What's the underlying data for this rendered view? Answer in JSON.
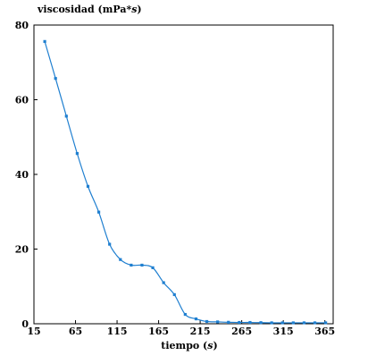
{
  "chart_data": {
    "type": "line",
    "title": "",
    "ylabel": "viscosidad (mPa*s)",
    "xlabel": "tiempo (s)",
    "xlim": [
      15,
      375
    ],
    "ylim": [
      0,
      80
    ],
    "grid": false,
    "x_ticks": [
      15,
      65,
      115,
      165,
      215,
      265,
      315,
      365
    ],
    "x_tick_labels": [
      "15",
      "65",
      "115",
      "165",
      "215",
      "265",
      "315",
      "365"
    ],
    "y_ticks": [
      0,
      20,
      40,
      60,
      80
    ],
    "y_tick_labels": [
      "0",
      "20",
      "40",
      "60",
      "80"
    ],
    "series": [
      {
        "color": "#1f7fd0",
        "x": [
          28,
          41,
          54,
          67,
          80,
          93,
          106,
          119,
          132,
          145,
          158,
          171,
          184,
          197,
          210,
          223,
          236,
          249,
          262,
          275,
          288,
          301,
          314,
          327,
          340,
          353,
          366
        ],
        "y": [
          75.6,
          65.7,
          55.6,
          45.6,
          36.8,
          29.9,
          21.3,
          17.2,
          15.7,
          15.7,
          15.0,
          11.0,
          7.8,
          2.5,
          1.3,
          0.6,
          0.5,
          0.4,
          0.35,
          0.35,
          0.3,
          0.25,
          0.25,
          0.25,
          0.25,
          0.25,
          0.25
        ]
      }
    ]
  }
}
